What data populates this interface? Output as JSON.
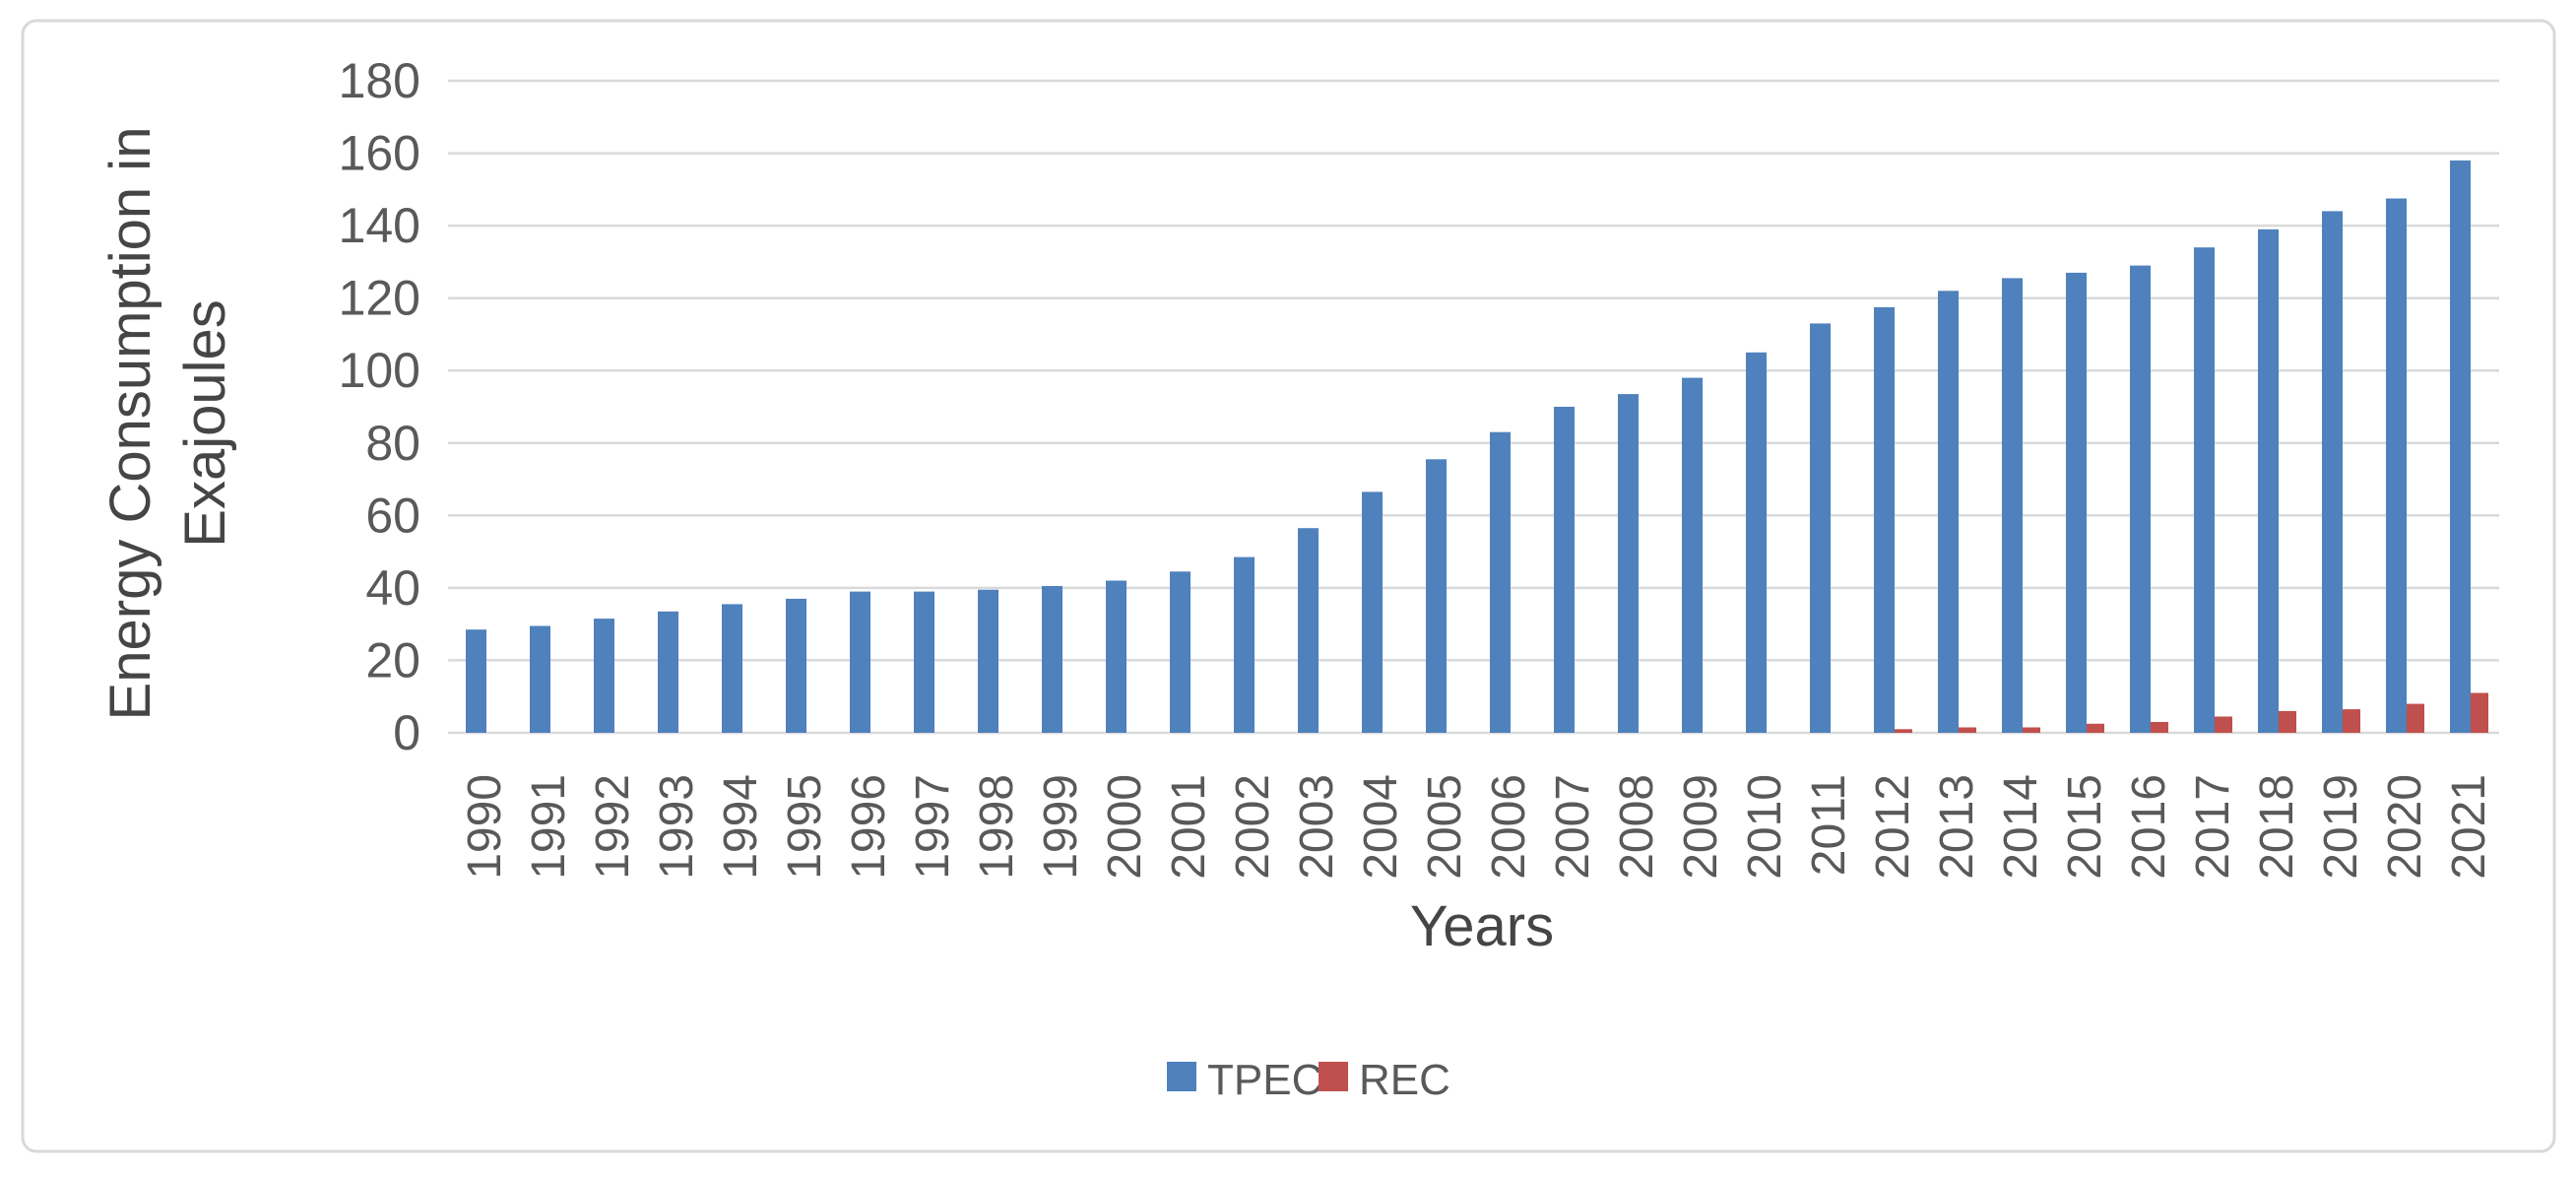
{
  "chart_data": {
    "type": "bar",
    "title": "",
    "xlabel": "Years",
    "ylabel": "Energy Consumption in Exajoules",
    "ylabel_lines": [
      "Energy Consumption in",
      "Exajoules"
    ],
    "ylim": [
      0,
      180
    ],
    "ytick_step": 20,
    "yticks": [
      0,
      20,
      40,
      60,
      80,
      100,
      120,
      140,
      160,
      180
    ],
    "grid": "horizontal",
    "legend_position": "bottom-center",
    "categories": [
      "1990",
      "1991",
      "1992",
      "1993",
      "1994",
      "1995",
      "1996",
      "1997",
      "1998",
      "1999",
      "2000",
      "2001",
      "2002",
      "2003",
      "2004",
      "2005",
      "2006",
      "2007",
      "2008",
      "2009",
      "2010",
      "2011",
      "2012",
      "2013",
      "2014",
      "2015",
      "2016",
      "2017",
      "2018",
      "2019",
      "2020",
      "2021"
    ],
    "series": [
      {
        "name": "TPEC",
        "color": "#4f81bd",
        "values": [
          28.5,
          29.5,
          31.5,
          33.5,
          35.5,
          37,
          39,
          39,
          39.5,
          40.5,
          42,
          44.5,
          48.5,
          56.5,
          66.5,
          75.5,
          83,
          90,
          93.5,
          98,
          105,
          113,
          117.5,
          122,
          125.5,
          127,
          129,
          134,
          139,
          144,
          147.5,
          158
        ]
      },
      {
        "name": "REC",
        "color": "#c0504d",
        "values": [
          0,
          0,
          0,
          0,
          0,
          0,
          0,
          0,
          0,
          0,
          0,
          0,
          0,
          0,
          0,
          0,
          0,
          0,
          0,
          0,
          0,
          0,
          1,
          1.5,
          1.5,
          2.5,
          3,
          4.5,
          6,
          6.5,
          8,
          11
        ]
      }
    ],
    "colors": {
      "gridline": "#d9d9d9",
      "frame_border": "#d9d9d9",
      "tick_text": "#595959",
      "title_text": "#454545",
      "background": "#ffffff"
    }
  }
}
